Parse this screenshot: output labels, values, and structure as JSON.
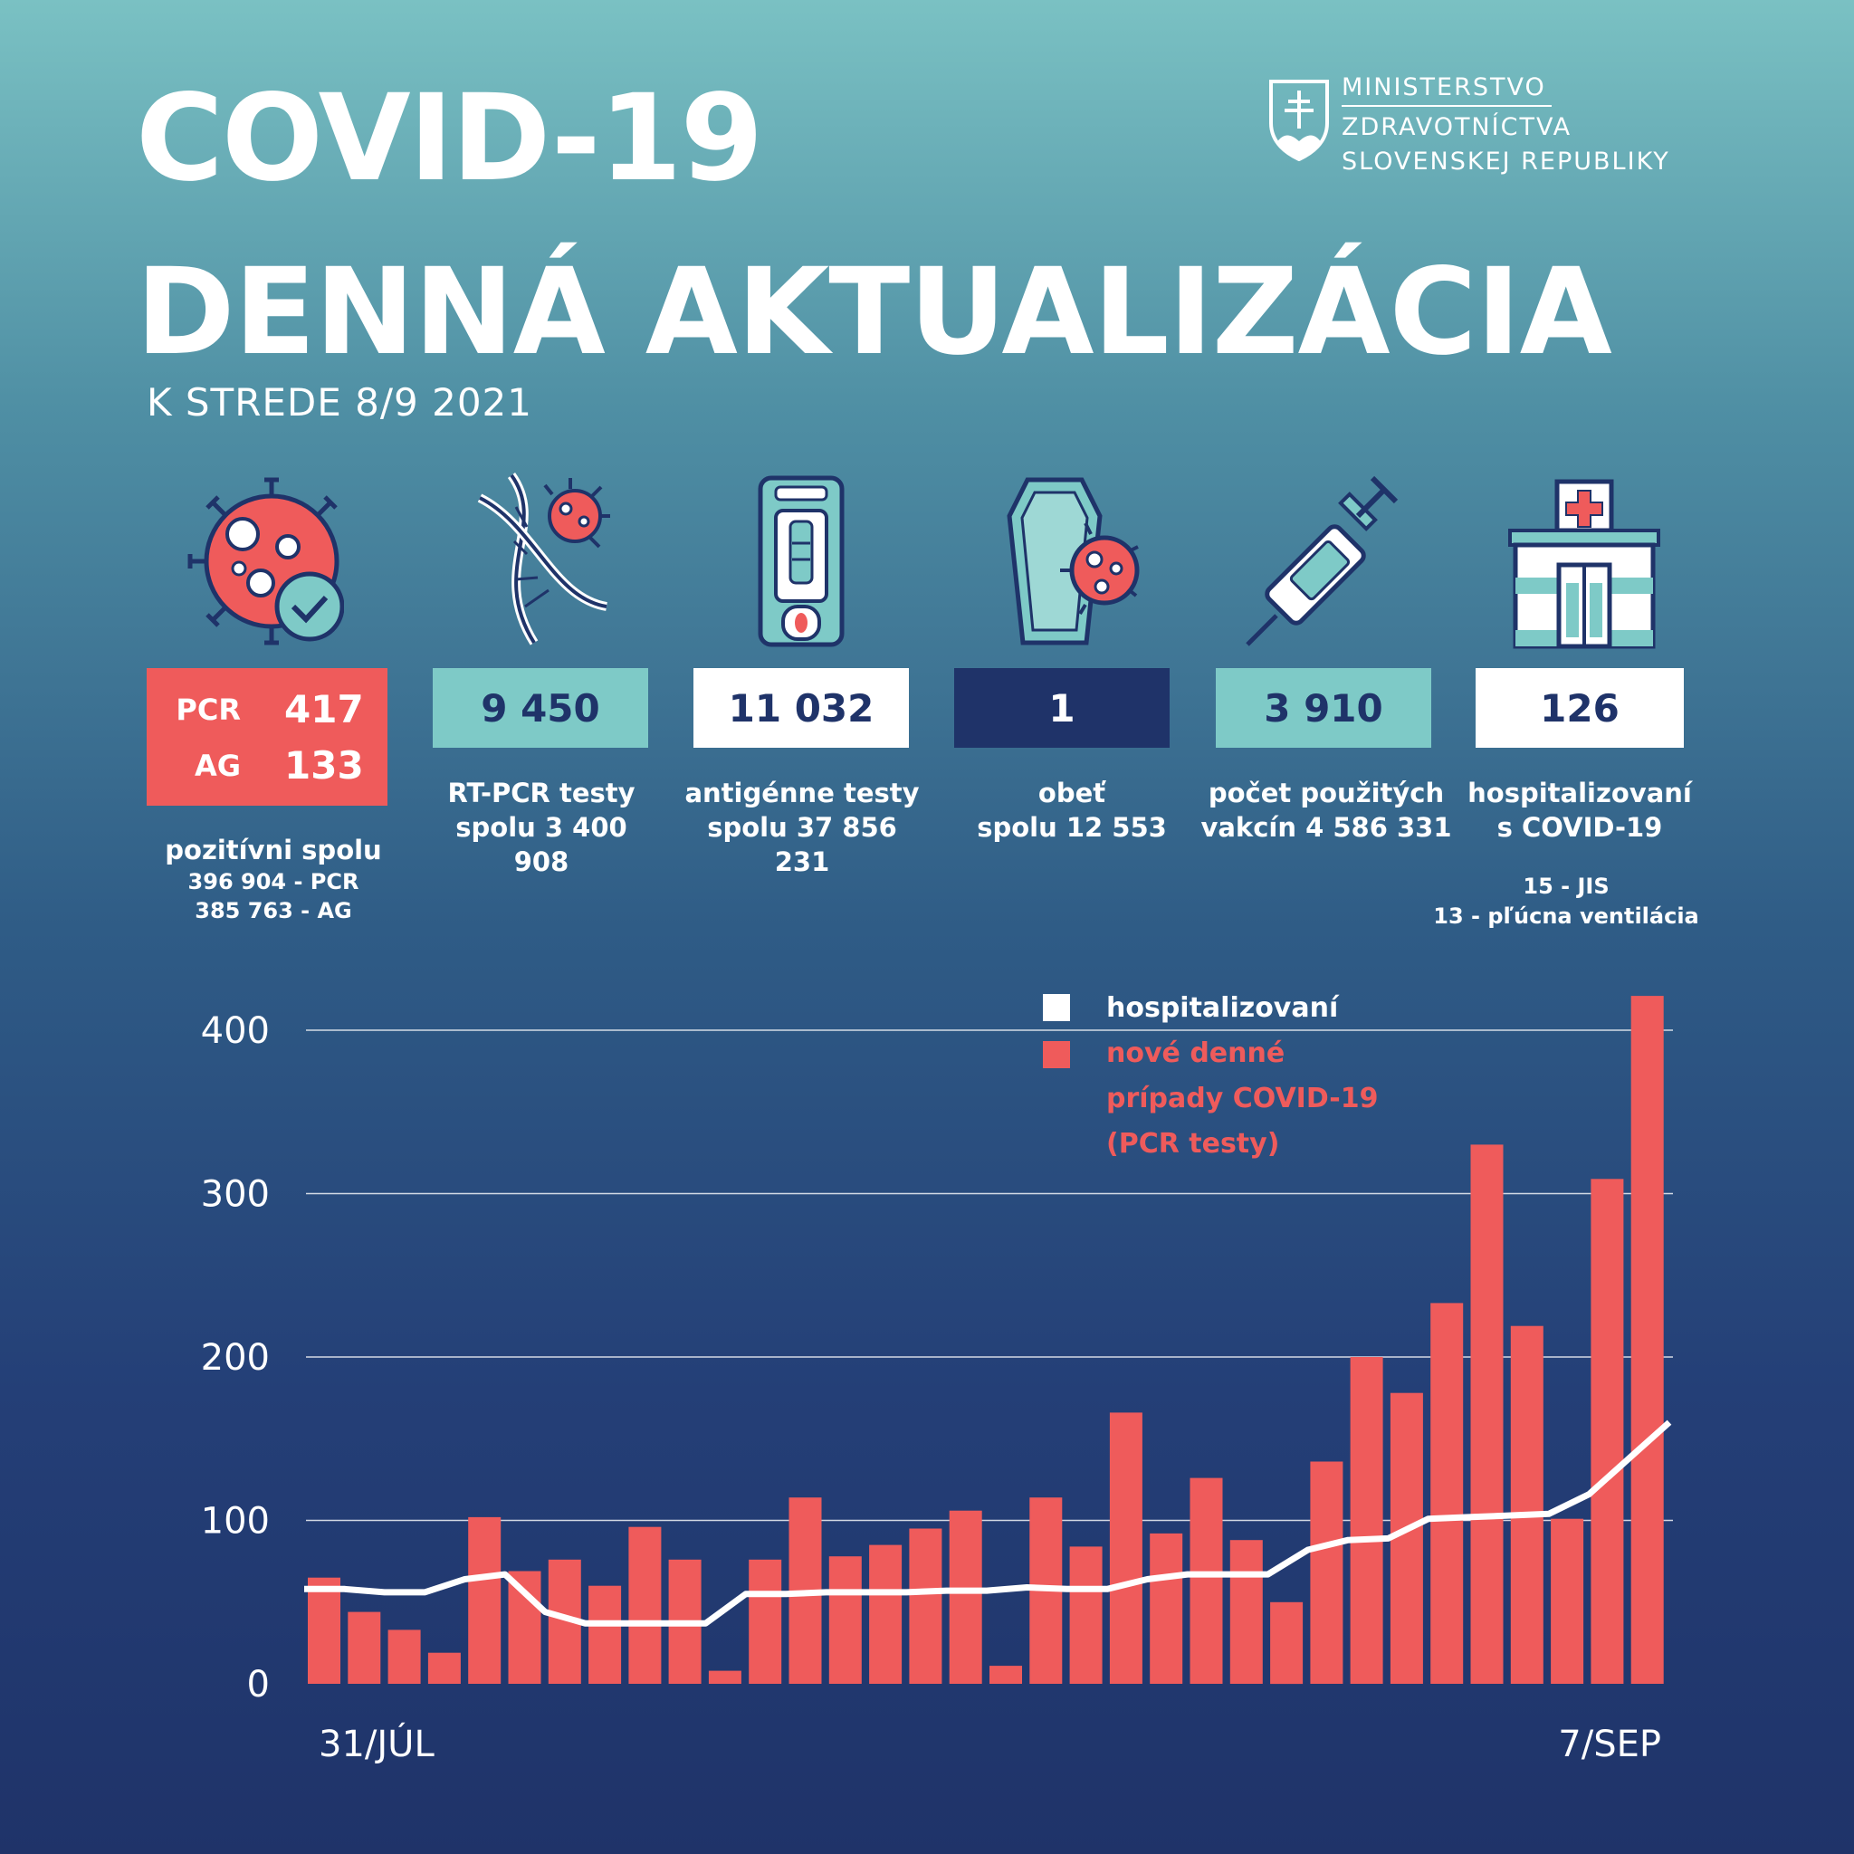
{
  "header": {
    "title_line1": "COVID-19",
    "title_line2": "DENNÁ AKTUALIZÁCIA",
    "date": "K STREDE 8/9 2021",
    "ministry": [
      "MINISTERSTVO",
      "ZDRAVOTNÍCTVA",
      "SLOVENSKEJ REPUBLIKY"
    ]
  },
  "stats": {
    "positive": {
      "pcr_label": "PCR",
      "pcr_value": "417",
      "ag_label": "AG",
      "ag_value": "133",
      "caption": "pozitívni spolu",
      "detail1": "396 904 - PCR",
      "detail2": "385 763 - AG",
      "icon": "virus-check-icon"
    },
    "rtpcr": {
      "value": "9 450",
      "caption1": "RT-PCR testy",
      "caption2": "spolu 3 400 908",
      "icon": "dna-virus-icon"
    },
    "antigen": {
      "value": "11 032",
      "caption1": "antigénne testy",
      "caption2": "spolu  37 856 231",
      "icon": "antigen-test-icon"
    },
    "deaths": {
      "value": "1",
      "caption1": "obeť",
      "caption2": "spolu 12 553",
      "icon": "coffin-virus-icon"
    },
    "vaccines": {
      "value": "3 910",
      "caption1": "počet použitých",
      "caption2": "vakcín  4 586 331",
      "icon": "syringe-icon"
    },
    "hospital": {
      "value": "126",
      "caption1": "hospitalizovaní",
      "caption2": "s COVID-19",
      "detail1": "15 - JIS",
      "detail2": "13 - pľúcna ventilácia",
      "icon": "hospital-icon"
    }
  },
  "colors": {
    "red": "#ef5b5b",
    "navy": "#1f3369",
    "teal": "#7ecac7",
    "white": "#ffffff"
  },
  "chart_data": {
    "type": "bar",
    "x_start_label": "31/JÚL",
    "x_end_label": "7/SEP",
    "ylim": [
      0,
      420
    ],
    "yticks": [
      0,
      100,
      200,
      300,
      400
    ],
    "legend": {
      "line_label": "hospitalizovaní",
      "bar_label_lines": [
        "nové denné",
        "prípady COVID-19",
        "(PCR testy)"
      ]
    },
    "series": [
      {
        "name": "nové denné prípady COVID-19 (PCR testy)",
        "type": "bar",
        "values": [
          65,
          44,
          33,
          19,
          102,
          69,
          76,
          60,
          96,
          76,
          8,
          76,
          114,
          78,
          85,
          95,
          106,
          11,
          114,
          84,
          166,
          92,
          126,
          88,
          50,
          136,
          200,
          178,
          233,
          330,
          219,
          101,
          309,
          421
        ]
      },
      {
        "name": "hospitalizovaní",
        "type": "line",
        "values": [
          58,
          58,
          56,
          56,
          64,
          67,
          44,
          37,
          37,
          37,
          37,
          55,
          55,
          56,
          56,
          56,
          57,
          57,
          59,
          58,
          58,
          64,
          67,
          67,
          67,
          82,
          88,
          89,
          101,
          102,
          103,
          104,
          116,
          138,
          160
        ]
      }
    ]
  }
}
